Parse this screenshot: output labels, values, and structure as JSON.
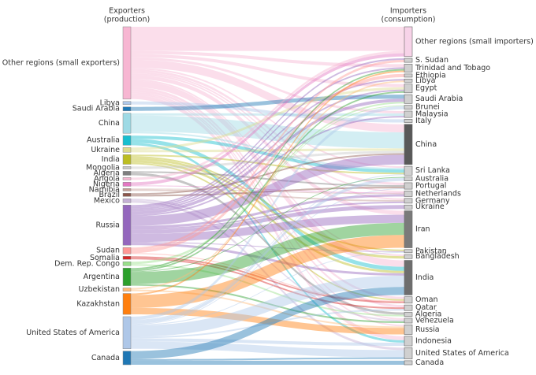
{
  "chart_data": {
    "type": "sankey",
    "left_header": [
      "Exporters",
      "(production)"
    ],
    "right_header": [
      "Importers",
      "(consumption)"
    ],
    "sources": [
      {
        "name": "Other regions (small exporters)",
        "color": "#f7b6d2"
      },
      {
        "name": "Libya",
        "color": "#aec7e8"
      },
      {
        "name": "Saudi Arabia",
        "color": "#1f77b4"
      },
      {
        "name": "China",
        "color": "#9edae5"
      },
      {
        "name": "Australia",
        "color": "#17becf"
      },
      {
        "name": "Ukraine",
        "color": "#dbdb8d"
      },
      {
        "name": "India",
        "color": "#bcbd22"
      },
      {
        "name": "Mongolia",
        "color": "#c7c7c7"
      },
      {
        "name": "Algeria",
        "color": "#7f7f7f"
      },
      {
        "name": "Angola",
        "color": "#f7b6d2"
      },
      {
        "name": "Nigeria",
        "color": "#e377c2"
      },
      {
        "name": "Namibia",
        "color": "#c49c94"
      },
      {
        "name": "Brazil",
        "color": "#8c564b"
      },
      {
        "name": "Mexico",
        "color": "#c5b0d5"
      },
      {
        "name": "Russia",
        "color": "#9467bd"
      },
      {
        "name": "Sudan",
        "color": "#ff9896"
      },
      {
        "name": "Somalia",
        "color": "#d62728"
      },
      {
        "name": "Dem. Rep. Congo",
        "color": "#98df8a"
      },
      {
        "name": "Argentina",
        "color": "#2ca02c"
      },
      {
        "name": "Uzbekistan",
        "color": "#ffbb78"
      },
      {
        "name": "Kazakhstan",
        "color": "#ff7f0e"
      },
      {
        "name": "United States of America",
        "color": "#aec7e8"
      },
      {
        "name": "Canada",
        "color": "#1f77b4"
      }
    ],
    "targets": [
      {
        "name": "Other regions (small importers)",
        "color": "#f7d3e8"
      },
      {
        "name": "S. Sudan",
        "color": "#d0d0d0"
      },
      {
        "name": "Trinidad and Tobago",
        "color": "#d0d0d0"
      },
      {
        "name": "Ethiopia",
        "color": "#d0d0d0"
      },
      {
        "name": "Libya",
        "color": "#d0d0d0"
      },
      {
        "name": "Egypt",
        "color": "#d0d0d0"
      },
      {
        "name": "Saudi Arabia",
        "color": "#d0d0d0"
      },
      {
        "name": "Brunei",
        "color": "#d0d0d0"
      },
      {
        "name": "Malaysia",
        "color": "#d0d0d0"
      },
      {
        "name": "Italy",
        "color": "#d0d0d0"
      },
      {
        "name": "China",
        "color": "#595959"
      },
      {
        "name": "Sri Lanka",
        "color": "#d0d0d0"
      },
      {
        "name": "Australia",
        "color": "#d0d0d0"
      },
      {
        "name": "Portugal",
        "color": "#d0d0d0"
      },
      {
        "name": "Netherlands",
        "color": "#d0d0d0"
      },
      {
        "name": "Germany",
        "color": "#d0d0d0"
      },
      {
        "name": "Ukraine",
        "color": "#d0d0d0"
      },
      {
        "name": "Iran",
        "color": "#7a7a7a"
      },
      {
        "name": "Pakistan",
        "color": "#d0d0d0"
      },
      {
        "name": "Bangladesh",
        "color": "#d0d0d0"
      },
      {
        "name": "India",
        "color": "#6e6e6e"
      },
      {
        "name": "Oman",
        "color": "#d0d0d0"
      },
      {
        "name": "Qatar",
        "color": "#d0d0d0"
      },
      {
        "name": "Algeria",
        "color": "#d0d0d0"
      },
      {
        "name": "Venezuela",
        "color": "#d0d0d0"
      },
      {
        "name": "Russia",
        "color": "#d0d0d0"
      },
      {
        "name": "Indonesia",
        "color": "#d0d0d0"
      },
      {
        "name": "United States of America",
        "color": "#d0d0d0"
      },
      {
        "name": "Canada",
        "color": "#d0d0d0"
      }
    ],
    "links": [
      {
        "source": "Other regions (small exporters)",
        "target": "Other regions (small importers)",
        "value": 30
      },
      {
        "source": "Other regions (small exporters)",
        "target": "Trinidad and Tobago",
        "value": 4
      },
      {
        "source": "Other regions (small exporters)",
        "target": "Egypt",
        "value": 4
      },
      {
        "source": "Other regions (small exporters)",
        "target": "Malaysia",
        "value": 3
      },
      {
        "source": "Other regions (small exporters)",
        "target": "China",
        "value": 10
      },
      {
        "source": "Other regions (small exporters)",
        "target": "Sri Lanka",
        "value": 2
      },
      {
        "source": "Other regions (small exporters)",
        "target": "Portugal",
        "value": 3
      },
      {
        "source": "Other regions (small exporters)",
        "target": "Netherlands",
        "value": 2
      },
      {
        "source": "Other regions (small exporters)",
        "target": "Germany",
        "value": 2
      },
      {
        "source": "Other regions (small exporters)",
        "target": "Iran",
        "value": 5
      },
      {
        "source": "Other regions (small exporters)",
        "target": "Bangladesh",
        "value": 2
      },
      {
        "source": "Other regions (small exporters)",
        "target": "India",
        "value": 8
      },
      {
        "source": "Other regions (small exporters)",
        "target": "Oman",
        "value": 3
      },
      {
        "source": "Other regions (small exporters)",
        "target": "Qatar",
        "value": 3
      },
      {
        "source": "Other regions (small exporters)",
        "target": "Venezuela",
        "value": 2
      },
      {
        "source": "Other regions (small exporters)",
        "target": "Russia",
        "value": 2
      },
      {
        "source": "Other regions (small exporters)",
        "target": "Indonesia",
        "value": 5
      },
      {
        "source": "Libya",
        "target": "Italy",
        "value": 4
      },
      {
        "source": "Saudi Arabia",
        "target": "Saudi Arabia",
        "value": 5
      },
      {
        "source": "China",
        "target": "Malaysia",
        "value": 3
      },
      {
        "source": "China",
        "target": "China",
        "value": 20
      },
      {
        "source": "China",
        "target": "Sri Lanka",
        "value": 2
      },
      {
        "source": "Australia",
        "target": "Sri Lanka",
        "value": 4
      },
      {
        "source": "Australia",
        "target": "India",
        "value": 5
      },
      {
        "source": "Australia",
        "target": "Indonesia",
        "value": 3
      },
      {
        "source": "Ukraine",
        "target": "Egypt",
        "value": 3
      },
      {
        "source": "Ukraine",
        "target": "China",
        "value": 3
      },
      {
        "source": "India",
        "target": "Sri Lanka",
        "value": 2
      },
      {
        "source": "India",
        "target": "Pakistan",
        "value": 2
      },
      {
        "source": "India",
        "target": "Bangladesh",
        "value": 3
      },
      {
        "source": "India",
        "target": "India",
        "value": 3
      },
      {
        "source": "India",
        "target": "Oman",
        "value": 2
      },
      {
        "source": "Mongolia",
        "target": "China",
        "value": 3
      },
      {
        "source": "Algeria",
        "target": "Portugal",
        "value": 2
      },
      {
        "source": "Algeria",
        "target": "Algeria",
        "value": 3
      },
      {
        "source": "Angola",
        "target": "Other regions (small importers)",
        "value": 3
      },
      {
        "source": "Nigeria",
        "target": "Other regions (small importers)",
        "value": 4
      },
      {
        "source": "Nigeria",
        "target": "Netherlands",
        "value": 1
      },
      {
        "source": "Namibia",
        "target": "Netherlands",
        "value": 1
      },
      {
        "source": "Namibia",
        "target": "Germany",
        "value": 2
      },
      {
        "source": "Brazil",
        "target": "China",
        "value": 2
      },
      {
        "source": "Brazil",
        "target": "Portugal",
        "value": 2
      },
      {
        "source": "Mexico",
        "target": "Venezuela",
        "value": 2
      },
      {
        "source": "Mexico",
        "target": "United States of America",
        "value": 3
      },
      {
        "source": "Russia",
        "target": "S. Sudan",
        "value": 2
      },
      {
        "source": "Russia",
        "target": "Trinidad and Tobago",
        "value": 2
      },
      {
        "source": "Russia",
        "target": "Libya",
        "value": 2
      },
      {
        "source": "Russia",
        "target": "Egypt",
        "value": 2
      },
      {
        "source": "Russia",
        "target": "Saudi Arabia",
        "value": 4
      },
      {
        "source": "Russia",
        "target": "Malaysia",
        "value": 2
      },
      {
        "source": "Russia",
        "target": "China",
        "value": 12
      },
      {
        "source": "Russia",
        "target": "Netherlands",
        "value": 3
      },
      {
        "source": "Russia",
        "target": "Germany",
        "value": 2
      },
      {
        "source": "Russia",
        "target": "Ukraine",
        "value": 5
      },
      {
        "source": "Russia",
        "target": "Iran",
        "value": 10
      },
      {
        "source": "Russia",
        "target": "Pakistan",
        "value": 1
      },
      {
        "source": "Russia",
        "target": "India",
        "value": 3
      },
      {
        "source": "Sudan",
        "target": "S. Sudan",
        "value": 3
      },
      {
        "source": "Sudan",
        "target": "Ethiopia",
        "value": 4
      },
      {
        "source": "Sudan",
        "target": "Oman",
        "value": 1
      },
      {
        "source": "Somalia",
        "target": "Oman",
        "value": 2
      },
      {
        "source": "Somalia",
        "target": "Qatar",
        "value": 2
      },
      {
        "source": "Dem. Rep. Congo",
        "target": "Saudi Arabia",
        "value": 2
      },
      {
        "source": "Dem. Rep. Congo",
        "target": "Brunei",
        "value": 1
      },
      {
        "source": "Dem. Rep. Congo",
        "target": "Algeria",
        "value": 2
      },
      {
        "source": "Argentina",
        "target": "Trinidad and Tobago",
        "value": 2
      },
      {
        "source": "Argentina",
        "target": "Egypt",
        "value": 2
      },
      {
        "source": "Argentina",
        "target": "Australia",
        "value": 1
      },
      {
        "source": "Argentina",
        "target": "Iran",
        "value": 15
      },
      {
        "source": "Argentina",
        "target": "Venezuela",
        "value": 2
      },
      {
        "source": "Uzbekistan",
        "target": "Libya",
        "value": 2
      },
      {
        "source": "Uzbekistan",
        "target": "Russia",
        "value": 2
      },
      {
        "source": "Kazakhstan",
        "target": "Trinidad and Tobago",
        "value": 2
      },
      {
        "source": "Kazakhstan",
        "target": "Iran",
        "value": 16
      },
      {
        "source": "Kazakhstan",
        "target": "Russia",
        "value": 8
      },
      {
        "source": "United States of America",
        "target": "Brunei",
        "value": 4
      },
      {
        "source": "United States of America",
        "target": "Sri Lanka",
        "value": 1
      },
      {
        "source": "United States of America",
        "target": "Australia",
        "value": 4
      },
      {
        "source": "United States of America",
        "target": "Portugal",
        "value": 1
      },
      {
        "source": "United States of America",
        "target": "Pakistan",
        "value": 1
      },
      {
        "source": "United States of America",
        "target": "India",
        "value": 14
      },
      {
        "source": "United States of America",
        "target": "Qatar",
        "value": 2
      },
      {
        "source": "United States of America",
        "target": "Indonesia",
        "value": 4
      },
      {
        "source": "United States of America",
        "target": "United States of America",
        "value": 9
      },
      {
        "source": "Canada",
        "target": "India",
        "value": 10
      },
      {
        "source": "Canada",
        "target": "United States of America",
        "value": 2
      },
      {
        "source": "Canada",
        "target": "Canada",
        "value": 5
      }
    ]
  }
}
